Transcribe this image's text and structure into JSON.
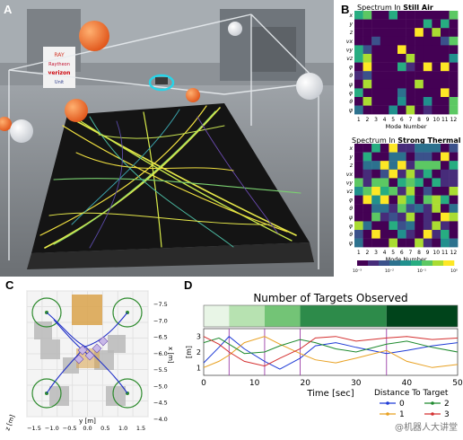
{
  "panels": {
    "a": "A",
    "b": "B",
    "c": "C",
    "d": "D"
  },
  "photo": {
    "signs": [
      "RAY",
      "Raytheon",
      "verizon",
      "Unit"
    ],
    "sign_colors": [
      "#d23a2a",
      "#c41230",
      "#cd040b",
      "#2a3a8a"
    ]
  },
  "heatmaps": {
    "still": {
      "title_prefix": "Spectrum In ",
      "title_bold": "Still Air"
    },
    "thermal": {
      "title_prefix": "Spectrum In ",
      "title_bold": "Strong Thermal"
    },
    "row_labels": [
      "x",
      "y",
      "z",
      "vx",
      "vy",
      "vz",
      "φ",
      "θ",
      "ψ",
      "φ",
      "θ",
      "ψ"
    ],
    "col_labels": [
      "1",
      "2",
      "3",
      "4",
      "5",
      "6",
      "7",
      "8",
      "9",
      "10",
      "11",
      "12"
    ],
    "xlabel": "Mode Number",
    "colorbar_ticks": [
      "10⁻³",
      "10⁻²",
      "10⁻¹",
      "10⁰"
    ]
  },
  "panel_c": {
    "xlabel": "y [m]",
    "ylabel": "x [m]",
    "zlabel": "z [m]",
    "y_ticks": [
      "−1.5",
      "−1.0",
      "−0.5",
      "0.0",
      "0.5",
      "1.0",
      "1.5"
    ],
    "x_ticks": [
      "−7.5",
      "−7.0",
      "−6.5",
      "−6.0",
      "−5.5",
      "−5.0",
      "−4.5",
      "−4.0"
    ]
  },
  "panel_d": {
    "title": "Number of Targets Observed",
    "ylabel": "[m]",
    "xlabel": "Time [sec]",
    "x_ticks": [
      "0",
      "10",
      "20",
      "30",
      "40",
      "50"
    ],
    "y_ticks": [
      "1",
      "2",
      "3"
    ],
    "band_colors": [
      "#e8f5e6",
      "#b7e2b1",
      "#73c476",
      "#2d8b4a",
      "#00441b"
    ],
    "legend": {
      "title": "Distance To Target",
      "entries": [
        {
          "label": "0",
          "color": "#1f3bd6"
        },
        {
          "label": "2",
          "color": "#1e8a2e"
        },
        {
          "label": "1",
          "color": "#e8a020"
        },
        {
          "label": "3",
          "color": "#d43030"
        }
      ]
    }
  },
  "chart_data": {
    "type": "line",
    "title": "Number of Targets Observed",
    "xlabel": "Time [sec]",
    "ylabel": "[m]",
    "xlim": [
      0,
      50
    ],
    "ylim": [
      0.5,
      3.5
    ],
    "bands": [
      {
        "x0": 0,
        "x1": 5,
        "count": 0
      },
      {
        "x0": 5,
        "x1": 12,
        "count": 1
      },
      {
        "x0": 12,
        "x1": 19,
        "count": 2
      },
      {
        "x0": 19,
        "x1": 36,
        "count": 3
      },
      {
        "x0": 36,
        "x1": 50,
        "count": 4
      }
    ],
    "series": [
      {
        "name": "0",
        "color": "#1f3bd6",
        "x": [
          0,
          3,
          5,
          8,
          12,
          15,
          19,
          22,
          26,
          30,
          36,
          40,
          45,
          50
        ],
        "y": [
          1.3,
          2.3,
          3.0,
          2.2,
          1.4,
          0.9,
          1.6,
          2.4,
          2.6,
          2.3,
          1.9,
          2.1,
          2.4,
          2.6
        ]
      },
      {
        "name": "1",
        "color": "#e8a020",
        "x": [
          0,
          3,
          5,
          8,
          12,
          15,
          19,
          22,
          26,
          30,
          36,
          40,
          45,
          50
        ],
        "y": [
          1.0,
          1.4,
          1.8,
          2.6,
          3.0,
          2.5,
          1.9,
          1.5,
          1.3,
          1.6,
          2.1,
          1.4,
          1.0,
          1.2
        ]
      },
      {
        "name": "2",
        "color": "#1e8a2e",
        "x": [
          0,
          3,
          5,
          8,
          12,
          15,
          19,
          22,
          26,
          30,
          36,
          40,
          45,
          50
        ],
        "y": [
          2.6,
          2.9,
          2.5,
          1.9,
          2.0,
          2.4,
          2.8,
          2.6,
          2.2,
          2.0,
          2.5,
          2.7,
          2.3,
          2.0
        ]
      },
      {
        "name": "3",
        "color": "#d43030",
        "x": [
          0,
          3,
          5,
          8,
          12,
          15,
          19,
          22,
          26,
          30,
          36,
          40,
          45,
          50
        ],
        "y": [
          3.0,
          2.5,
          2.0,
          1.4,
          1.1,
          1.6,
          2.2,
          2.9,
          3.0,
          2.7,
          2.9,
          3.0,
          2.8,
          2.9
        ]
      }
    ]
  }
}
